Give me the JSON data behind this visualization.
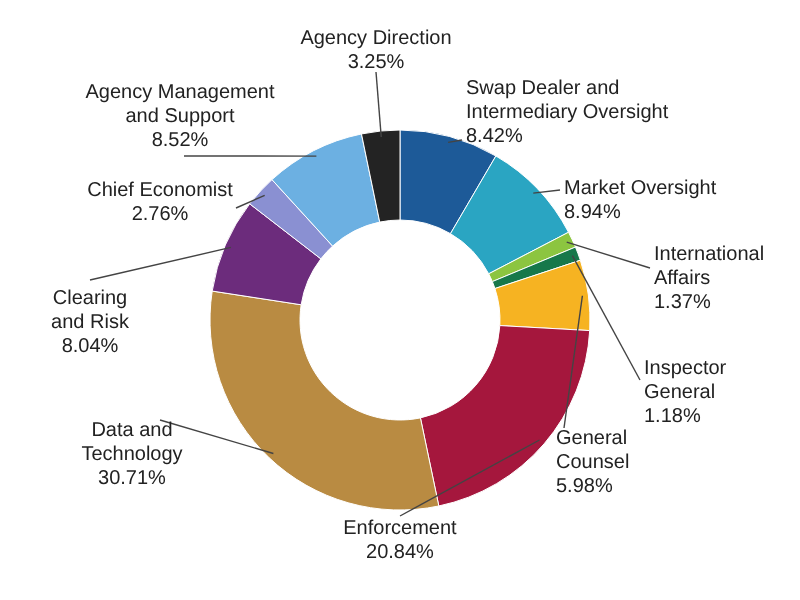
{
  "chart_data": {
    "type": "donut",
    "categories": [
      "Swap Dealer and Intermediary Oversight",
      "Market Oversight",
      "International Affairs",
      "Inspector General",
      "General Counsel",
      "Enforcement",
      "Data and Technology",
      "Clearing and Risk",
      "Chief Economist",
      "Agency Management and Support",
      "Agency Direction"
    ],
    "values": [
      8.42,
      8.94,
      1.37,
      1.18,
      5.98,
      20.84,
      30.71,
      8.04,
      2.76,
      8.52,
      3.25
    ],
    "value_labels": [
      "8.42%",
      "8.94%",
      "1.37%",
      "1.18%",
      "5.98%",
      "20.84%",
      "30.71%",
      "8.04%",
      "2.76%",
      "8.52%",
      "3.25%"
    ],
    "colors": [
      "#1d5a98",
      "#2aa5c2",
      "#8cc540",
      "#17784a",
      "#f6b322",
      "#a5173d",
      "#b98b42",
      "#6c2c7c",
      "#8a90d2",
      "#6cb0e2",
      "#232323"
    ]
  }
}
